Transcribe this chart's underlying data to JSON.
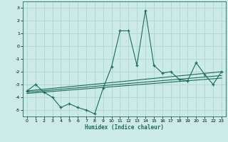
{
  "title": "",
  "xlabel": "Humidex (Indice chaleur)",
  "ylabel": "",
  "bg_color": "#cceae7",
  "grid_color": "#b0d8d4",
  "line_color": "#1e6b5e",
  "xlim": [
    -0.5,
    23.5
  ],
  "ylim": [
    -5.5,
    3.5
  ],
  "yticks": [
    -5,
    -4,
    -3,
    -2,
    -1,
    0,
    1,
    2,
    3
  ],
  "xticks": [
    0,
    1,
    2,
    3,
    4,
    5,
    6,
    7,
    8,
    9,
    10,
    11,
    12,
    13,
    14,
    15,
    16,
    17,
    18,
    19,
    20,
    21,
    22,
    23
  ],
  "series1_x": [
    0,
    1,
    2,
    3,
    4,
    5,
    6,
    7,
    8,
    9,
    10,
    11,
    12,
    13,
    14,
    15,
    16,
    17,
    18,
    19,
    20,
    21,
    22,
    23
  ],
  "series1_y": [
    -3.5,
    -3.0,
    -3.6,
    -4.0,
    -4.8,
    -4.5,
    -4.8,
    -5.0,
    -5.3,
    -3.3,
    -1.6,
    1.2,
    1.2,
    -1.5,
    2.8,
    -1.5,
    -2.1,
    -2.0,
    -2.6,
    -2.7,
    -1.3,
    -2.2,
    -3.0,
    -2.0
  ],
  "series2_x": [
    0,
    23
  ],
  "series2_y": [
    -3.5,
    -2.0
  ],
  "series3_x": [
    0,
    23
  ],
  "series3_y": [
    -3.6,
    -2.3
  ],
  "series4_x": [
    0,
    23
  ],
  "series4_y": [
    -3.7,
    -2.5
  ]
}
